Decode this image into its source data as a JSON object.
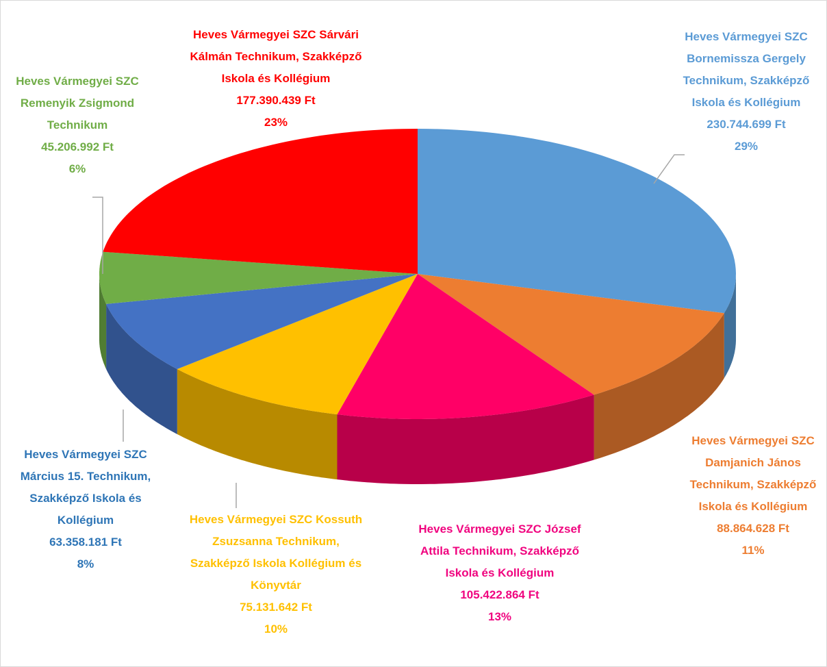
{
  "chart_data": {
    "type": "pie",
    "categories": [
      "Heves Vármegyei SZC Bornemissza Gergely Technikum, Szakképző Iskola és Kollégium",
      "Heves Vármegyei SZC Damjanich János Technikum, Szakképző Iskola és Kollégium",
      "Heves Vármegyei SZC József Attila Technikum, Szakképző Iskola és Kollégium",
      "Heves Vármegyei SZC Kossuth Zsuzsanna Technikum, Szakképző Iskola Kollégium és Könyvtár",
      "Heves Vármegyei SZC Március 15. Technikum, Szakképző Iskola és Kollégium",
      "Heves Vármegyei SZC Remenyik Zsigmond Technikum",
      "Heves Vármegyei SZC Sárvári Kálmán Technikum, Szakképző Iskola és Kollégium"
    ],
    "values": [
      230744699,
      88864628,
      105422864,
      75131642,
      63358181,
      45206992,
      177390439
    ],
    "value_labels": [
      "230.744.699 Ft",
      "88.864.628 Ft",
      "105.422.864 Ft",
      "75.131.642 Ft",
      "63.358.181 Ft",
      "45.206.992 Ft",
      "177.390.439 Ft"
    ],
    "percent_labels": [
      "29%",
      "11%",
      "13%",
      "10%",
      "8%",
      "6%",
      "23%"
    ],
    "colors": [
      "#5b9bd5",
      "#ed7d31",
      "#ff0066",
      "#ffc000",
      "#4472c4",
      "#70ad47",
      "#ff0000"
    ],
    "label_colors": [
      "#5b9bd5",
      "#ed7d31",
      "#f0047f",
      "#ffc000",
      "#2e75b6",
      "#70ad47",
      "#ff0000"
    ]
  }
}
